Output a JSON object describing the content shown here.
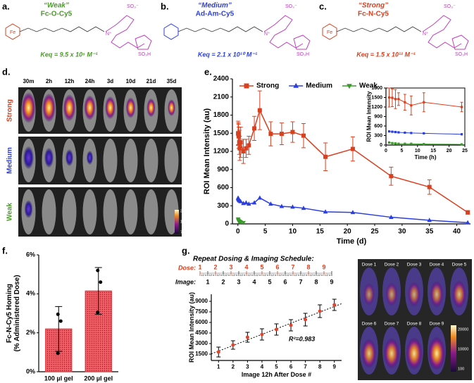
{
  "panels": {
    "a": {
      "label": "a.",
      "quality": "“Weak”",
      "name": "Fc-O-Cy5",
      "keq": "Keq = 9.5 x 10⁸ M⁻¹",
      "color": "#4a9a2a",
      "atoms": [
        "SO₃⁻",
        "SO₃H",
        "N⁺",
        "Fe"
      ]
    },
    "b": {
      "label": "b.",
      "quality": "“Medium”",
      "name": "Ad-Am-Cy5",
      "keq": "Keq = 2.1 x 10¹⁰ M⁻¹",
      "color": "#2b3fe0",
      "atoms": [
        "SO₃⁻",
        "SO₃H",
        "N⁺"
      ]
    },
    "c": {
      "label": "c.",
      "quality": "“Strong”",
      "name": "Fc-N-Cy5",
      "keq": "Keq = 1.5 x 10¹² M⁻¹",
      "color": "#d9401f",
      "atoms": [
        "SO₃⁻",
        "SO₃H",
        "N⁺",
        "Fe"
      ]
    },
    "d": {
      "label": "d.",
      "times": [
        "30m",
        "2h",
        "12h",
        "24h",
        "3d",
        "10d",
        "21d",
        "35d"
      ],
      "rows": [
        {
          "name": "Strong",
          "color": "#d9401f"
        },
        {
          "name": "Medium",
          "color": "#2b3fe0"
        },
        {
          "name": "Weak",
          "color": "#4a9a2a"
        }
      ],
      "scale": [
        "3000",
        "1500",
        "75"
      ]
    },
    "g_schedule": {
      "title": "Repeat Dosing & Imaging Schedule:",
      "dose_label": "Dose:",
      "doses": [
        "1",
        "2",
        "3",
        "4",
        "5",
        "6",
        "7",
        "8",
        "9"
      ],
      "image_label": "Image:",
      "images": [
        "1",
        "2",
        "3",
        "4",
        "5",
        "6",
        "7",
        "8",
        "9"
      ],
      "interval": "12 h"
    },
    "g_images": {
      "labels": [
        "Dose 1",
        "Dose 2",
        "Dose 3",
        "Dose 4",
        "Dose 5",
        "Dose 6",
        "Dose 7",
        "Dose 8",
        "Dose 9"
      ],
      "scale": [
        "20000",
        "10000",
        "100"
      ]
    }
  },
  "chart_data": [
    {
      "panel": "e.",
      "type": "line",
      "xlabel": "Time (d)",
      "ylabel": "ROI Mean Intensity (au)",
      "xlim": [
        -1,
        42.5
      ],
      "xticks": [
        0,
        5,
        10,
        15,
        20,
        25,
        30,
        35,
        40
      ],
      "ylim": [
        0,
        2400
      ],
      "yticks": [
        0,
        300,
        600,
        900,
        1200,
        1500,
        1800,
        2100,
        2400
      ],
      "legend": "upper left",
      "x": [
        0.04,
        0.08,
        0.125,
        0.17,
        0.25,
        0.33,
        0.5,
        1,
        1.5,
        2,
        3,
        4,
        6,
        8,
        10,
        12,
        16,
        21,
        28,
        35,
        42
      ],
      "series": [
        {
          "name": "Strong",
          "color": "#d9401f",
          "marker": "square",
          "values": [
            1500,
            1490,
            1450,
            1450,
            1350,
            1250,
            1350,
            1200,
            1250,
            1300,
            1580,
            1880,
            1490,
            1490,
            1520,
            1460,
            1110,
            1240,
            790,
            610,
            190
          ],
          "errors": [
            200,
            180,
            200,
            150,
            200,
            200,
            250,
            200,
            150,
            150,
            200,
            320,
            200,
            180,
            170,
            200,
            230,
            200,
            150,
            120,
            30
          ]
        },
        {
          "name": "Medium",
          "color": "#2b3fe0",
          "marker": "triangle",
          "values": [
            430,
            420,
            410,
            400,
            390,
            380,
            370,
            340,
            350,
            330,
            350,
            430,
            330,
            290,
            280,
            260,
            200,
            190,
            110,
            60,
            20
          ]
        },
        {
          "name": "Weak",
          "color": "#3a9a2a",
          "marker": "triangle-down",
          "values": [
            80,
            60,
            50,
            40,
            40,
            40,
            30,
            20,
            null,
            null,
            null,
            null,
            null,
            null,
            null,
            null,
            null,
            null,
            null,
            null,
            null
          ]
        }
      ]
    },
    {
      "type": "line",
      "xlabel": "Time (h)",
      "ylabel": "ROI Mean Intensity",
      "box": true,
      "xlim": [
        0,
        25
      ],
      "xticks": [
        0,
        5,
        10,
        15,
        20,
        25
      ],
      "ylim": [
        0,
        1800
      ],
      "yticks": [
        0,
        300,
        600,
        900,
        1200,
        1500,
        1800
      ],
      "x": [
        1,
        2,
        3,
        4,
        6,
        8,
        12,
        24
      ],
      "series": [
        {
          "color": "#d9401f",
          "marker": "square",
          "values": [
            1500,
            1490,
            1450,
            1450,
            1350,
            1250,
            1350,
            1200
          ],
          "errors": [
            300,
            280,
            300,
            200,
            250,
            300,
            300,
            150
          ]
        },
        {
          "color": "#2b3fe0",
          "marker": "square",
          "values": [
            430,
            420,
            410,
            400,
            390,
            380,
            370,
            340
          ]
        },
        {
          "color": "#3a9a2a",
          "marker": "square",
          "values": [
            80,
            60,
            50,
            40,
            40,
            40,
            30,
            20
          ]
        }
      ]
    },
    {
      "panel": "f.",
      "type": "bar",
      "ylabel": [
        "Fc-N-Cy5 Homing",
        "(% Administered Dose)"
      ],
      "categories": [
        "100 µl gel",
        "200 µl gel"
      ],
      "values": [
        2.2,
        4.15
      ],
      "errors": [
        1.15,
        1.2
      ],
      "points": [
        [
          2.95,
          2.6,
          0.95
        ],
        [
          5.2,
          4.6,
          3.05
        ]
      ],
      "color": "#e3343c",
      "ylim": [
        0,
        6
      ],
      "yticks": [
        {
          "value": 0,
          "label": "0%"
        },
        {
          "value": 2,
          "label": "2%"
        },
        {
          "value": 4,
          "label": "4%"
        },
        {
          "value": 6,
          "label": "6%"
        }
      ]
    },
    {
      "panel": "g.",
      "type": "scatter",
      "xlabel": "Image 12h After Dose #",
      "ylabel": "ROI Mean Intensity (au)",
      "x": [
        1,
        2,
        3,
        4,
        5,
        6,
        7,
        8,
        9
      ],
      "values": [
        1800,
        2800,
        3900,
        4300,
        5000,
        5600,
        6400,
        7600,
        8500
      ],
      "errors": [
        700,
        600,
        700,
        800,
        800,
        800,
        900,
        900,
        800
      ],
      "color": "#e2452f",
      "xlim": [
        0.5,
        9.5
      ],
      "xticks": [
        1,
        2,
        3,
        4,
        5,
        6,
        7,
        8,
        9
      ],
      "ylim": [
        600,
        10000
      ],
      "yticks": [
        1500,
        3000,
        4500,
        6000,
        7500,
        9000
      ],
      "annotation": "R²=0.983",
      "trendline": true
    }
  ]
}
